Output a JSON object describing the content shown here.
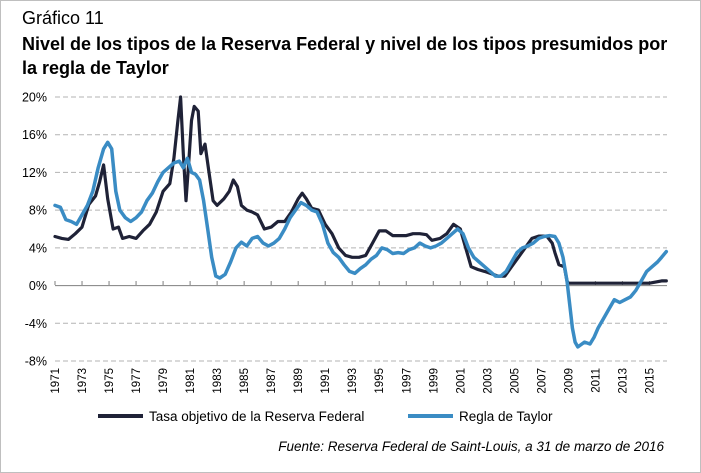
{
  "header": {
    "label": "Gráfico 11",
    "title": "Nivel de los tipos de la Reserva Federal y nivel de los tipos presumidos por la regla de Taylor"
  },
  "source": "Fuente: Reserva Federal de Saint-Louis, a 31 de marzo de 2016",
  "chart_data": {
    "type": "line",
    "title": "Nivel de los tipos de la Reserva Federal y nivel de los tipos presumidos por la regla de Taylor",
    "xlabel": "",
    "ylabel": "",
    "xlim": [
      1971,
      2016.3
    ],
    "ylim": [
      -8,
      20
    ],
    "yticks": [
      -8,
      -4,
      0,
      4,
      8,
      12,
      16,
      20
    ],
    "ytick_labels": [
      "-8%",
      "-4%",
      "0%",
      "4%",
      "8%",
      "12%",
      "16%",
      "20%"
    ],
    "xticks": [
      "1971",
      "1973",
      "1975",
      "1977",
      "1979",
      "1981",
      "1983",
      "1985",
      "1987",
      "1989",
      "1991",
      "1993",
      "1995",
      "1997",
      "1999",
      "2001",
      "2003",
      "2005",
      "2007",
      "2009",
      "2011",
      "2013",
      "2015"
    ],
    "grid": "horizontal dashed",
    "legend_position": "bottom",
    "series": [
      {
        "name": "Tasa objetivo de la Reserva Federal",
        "color": "#1f2237",
        "points": [
          [
            1971.0,
            5.2
          ],
          [
            1971.5,
            5.0
          ],
          [
            1972.0,
            4.9
          ],
          [
            1972.5,
            5.5
          ],
          [
            1973.0,
            6.2
          ],
          [
            1973.5,
            8.6
          ],
          [
            1974.0,
            9.5
          ],
          [
            1974.3,
            11.0
          ],
          [
            1974.6,
            12.8
          ],
          [
            1974.9,
            9.2
          ],
          [
            1975.3,
            6.0
          ],
          [
            1975.7,
            6.2
          ],
          [
            1976.0,
            5.0
          ],
          [
            1976.5,
            5.2
          ],
          [
            1977.0,
            5.0
          ],
          [
            1977.5,
            5.8
          ],
          [
            1978.0,
            6.5
          ],
          [
            1978.5,
            7.8
          ],
          [
            1979.0,
            10.0
          ],
          [
            1979.5,
            10.8
          ],
          [
            1979.8,
            13.5
          ],
          [
            1980.1,
            17.5
          ],
          [
            1980.3,
            20.0
          ],
          [
            1980.5,
            14.0
          ],
          [
            1980.7,
            9.0
          ],
          [
            1980.9,
            13.0
          ],
          [
            1981.1,
            17.5
          ],
          [
            1981.3,
            19.0
          ],
          [
            1981.6,
            18.5
          ],
          [
            1981.8,
            14.0
          ],
          [
            1982.1,
            15.0
          ],
          [
            1982.4,
            12.0
          ],
          [
            1982.7,
            9.0
          ],
          [
            1983.0,
            8.5
          ],
          [
            1983.5,
            9.2
          ],
          [
            1983.9,
            10.0
          ],
          [
            1984.2,
            11.2
          ],
          [
            1984.5,
            10.5
          ],
          [
            1984.8,
            8.5
          ],
          [
            1985.2,
            8.0
          ],
          [
            1985.6,
            7.8
          ],
          [
            1986.0,
            7.5
          ],
          [
            1986.5,
            6.0
          ],
          [
            1987.0,
            6.2
          ],
          [
            1987.5,
            6.8
          ],
          [
            1988.0,
            6.8
          ],
          [
            1988.5,
            7.8
          ],
          [
            1989.0,
            9.2
          ],
          [
            1989.3,
            9.8
          ],
          [
            1989.6,
            9.2
          ],
          [
            1990.0,
            8.2
          ],
          [
            1990.5,
            8.0
          ],
          [
            1991.0,
            6.5
          ],
          [
            1991.5,
            5.5
          ],
          [
            1992.0,
            4.0
          ],
          [
            1992.5,
            3.2
          ],
          [
            1993.0,
            3.0
          ],
          [
            1993.5,
            3.0
          ],
          [
            1994.0,
            3.2
          ],
          [
            1994.5,
            4.5
          ],
          [
            1995.0,
            5.8
          ],
          [
            1995.5,
            5.8
          ],
          [
            1996.0,
            5.3
          ],
          [
            1996.5,
            5.3
          ],
          [
            1997.0,
            5.3
          ],
          [
            1997.5,
            5.5
          ],
          [
            1998.0,
            5.5
          ],
          [
            1998.5,
            5.4
          ],
          [
            1998.9,
            4.8
          ],
          [
            1999.5,
            5.0
          ],
          [
            2000.0,
            5.5
          ],
          [
            2000.5,
            6.5
          ],
          [
            2001.0,
            6.0
          ],
          [
            2001.4,
            4.0
          ],
          [
            2001.8,
            2.0
          ],
          [
            2002.3,
            1.7
          ],
          [
            2002.8,
            1.5
          ],
          [
            2003.3,
            1.25
          ],
          [
            2003.8,
            1.0
          ],
          [
            2004.3,
            1.0
          ],
          [
            2004.8,
            2.0
          ],
          [
            2005.3,
            3.0
          ],
          [
            2005.8,
            4.0
          ],
          [
            2006.3,
            5.0
          ],
          [
            2006.8,
            5.25
          ],
          [
            2007.4,
            5.25
          ],
          [
            2007.8,
            4.5
          ],
          [
            2008.0,
            3.5
          ],
          [
            2008.3,
            2.2
          ],
          [
            2008.7,
            2.0
          ],
          [
            2008.9,
            0.5
          ],
          [
            2009.0,
            0.25
          ],
          [
            2010.0,
            0.25
          ],
          [
            2011.0,
            0.25
          ],
          [
            2012.0,
            0.25
          ],
          [
            2013.0,
            0.25
          ],
          [
            2014.0,
            0.25
          ],
          [
            2015.0,
            0.25
          ],
          [
            2015.9,
            0.5
          ],
          [
            2016.25,
            0.5
          ]
        ]
      },
      {
        "name": "Regla de Taylor",
        "color": "#3a8cc4",
        "points": [
          [
            1971.0,
            8.5
          ],
          [
            1971.4,
            8.3
          ],
          [
            1971.8,
            7.0
          ],
          [
            1972.2,
            6.8
          ],
          [
            1972.6,
            6.5
          ],
          [
            1973.0,
            7.5
          ],
          [
            1973.4,
            8.5
          ],
          [
            1973.8,
            10.0
          ],
          [
            1974.2,
            12.5
          ],
          [
            1974.6,
            14.5
          ],
          [
            1974.9,
            15.2
          ],
          [
            1975.2,
            14.5
          ],
          [
            1975.5,
            10.0
          ],
          [
            1975.8,
            8.0
          ],
          [
            1976.2,
            7.2
          ],
          [
            1976.6,
            6.8
          ],
          [
            1977.0,
            7.2
          ],
          [
            1977.4,
            7.8
          ],
          [
            1977.8,
            9.0
          ],
          [
            1978.2,
            9.8
          ],
          [
            1978.6,
            11.0
          ],
          [
            1979.0,
            12.0
          ],
          [
            1979.4,
            12.5
          ],
          [
            1979.8,
            13.0
          ],
          [
            1980.2,
            13.2
          ],
          [
            1980.5,
            12.5
          ],
          [
            1980.8,
            13.5
          ],
          [
            1981.1,
            12.0
          ],
          [
            1981.4,
            11.8
          ],
          [
            1981.7,
            11.2
          ],
          [
            1982.0,
            9.0
          ],
          [
            1982.3,
            6.0
          ],
          [
            1982.6,
            3.0
          ],
          [
            1982.9,
            1.0
          ],
          [
            1983.2,
            0.8
          ],
          [
            1983.6,
            1.2
          ],
          [
            1984.0,
            2.5
          ],
          [
            1984.4,
            4.0
          ],
          [
            1984.8,
            4.6
          ],
          [
            1985.2,
            4.2
          ],
          [
            1985.6,
            5.0
          ],
          [
            1986.0,
            5.2
          ],
          [
            1986.4,
            4.5
          ],
          [
            1986.8,
            4.2
          ],
          [
            1987.2,
            4.5
          ],
          [
            1987.6,
            5.0
          ],
          [
            1988.0,
            6.0
          ],
          [
            1988.4,
            7.2
          ],
          [
            1988.8,
            8.0
          ],
          [
            1989.2,
            8.8
          ],
          [
            1989.6,
            8.5
          ],
          [
            1990.0,
            8.0
          ],
          [
            1990.4,
            7.8
          ],
          [
            1990.8,
            6.5
          ],
          [
            1991.2,
            4.5
          ],
          [
            1991.6,
            3.5
          ],
          [
            1992.0,
            3.0
          ],
          [
            1992.4,
            2.2
          ],
          [
            1992.8,
            1.5
          ],
          [
            1993.2,
            1.3
          ],
          [
            1993.6,
            1.8
          ],
          [
            1994.0,
            2.2
          ],
          [
            1994.4,
            2.8
          ],
          [
            1994.8,
            3.2
          ],
          [
            1995.2,
            4.0
          ],
          [
            1995.6,
            3.8
          ],
          [
            1996.0,
            3.4
          ],
          [
            1996.4,
            3.5
          ],
          [
            1996.8,
            3.4
          ],
          [
            1997.2,
            3.8
          ],
          [
            1997.6,
            4.0
          ],
          [
            1998.0,
            4.5
          ],
          [
            1998.4,
            4.2
          ],
          [
            1998.8,
            4.0
          ],
          [
            1999.2,
            4.2
          ],
          [
            1999.6,
            4.5
          ],
          [
            2000.0,
            5.0
          ],
          [
            2000.4,
            5.5
          ],
          [
            2000.8,
            6.0
          ],
          [
            2001.2,
            5.5
          ],
          [
            2001.6,
            4.0
          ],
          [
            2002.0,
            3.0
          ],
          [
            2002.4,
            2.5
          ],
          [
            2002.8,
            2.0
          ],
          [
            2003.2,
            1.5
          ],
          [
            2003.6,
            1.0
          ],
          [
            2004.0,
            1.0
          ],
          [
            2004.4,
            1.5
          ],
          [
            2004.8,
            2.5
          ],
          [
            2005.2,
            3.5
          ],
          [
            2005.6,
            4.0
          ],
          [
            2006.0,
            4.2
          ],
          [
            2006.4,
            4.5
          ],
          [
            2006.8,
            5.0
          ],
          [
            2007.2,
            5.2
          ],
          [
            2007.6,
            5.3
          ],
          [
            2008.0,
            5.2
          ],
          [
            2008.3,
            4.5
          ],
          [
            2008.6,
            3.0
          ],
          [
            2008.9,
            0.5
          ],
          [
            2009.1,
            -2.0
          ],
          [
            2009.3,
            -4.5
          ],
          [
            2009.5,
            -6.0
          ],
          [
            2009.7,
            -6.5
          ],
          [
            2009.9,
            -6.3
          ],
          [
            2010.2,
            -6.0
          ],
          [
            2010.6,
            -6.2
          ],
          [
            2010.9,
            -5.5
          ],
          [
            2011.2,
            -4.5
          ],
          [
            2011.6,
            -3.5
          ],
          [
            2012.0,
            -2.5
          ],
          [
            2012.4,
            -1.5
          ],
          [
            2012.8,
            -1.8
          ],
          [
            2013.2,
            -1.5
          ],
          [
            2013.6,
            -1.2
          ],
          [
            2014.0,
            -0.5
          ],
          [
            2014.4,
            0.5
          ],
          [
            2014.8,
            1.5
          ],
          [
            2015.2,
            2.0
          ],
          [
            2015.6,
            2.5
          ],
          [
            2015.9,
            3.0
          ],
          [
            2016.25,
            3.6
          ]
        ]
      }
    ]
  }
}
